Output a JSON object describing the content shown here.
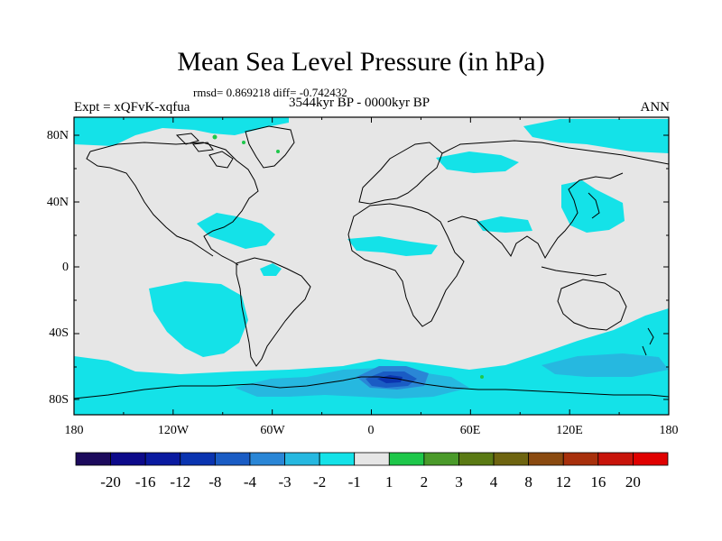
{
  "header": {
    "title": "Mean Sea Level Pressure (in hPa)",
    "stats": "rmsd= 0.869218 diff= -0.742432",
    "experiment": "Expt = xQFvK-xqfua",
    "period": "3544kyr BP - 0000kyr BP",
    "season": "ANN"
  },
  "axes": {
    "lat_labels": [
      "80N",
      "40N",
      "0",
      "40S",
      "80S"
    ],
    "lon_labels": [
      "180",
      "120W",
      "60W",
      "0",
      "60E",
      "120E",
      "180"
    ]
  },
  "colorbar": {
    "labels": [
      "-20",
      "-16",
      "-12",
      "-8",
      "-4",
      "-3",
      "-2",
      "-1",
      "1",
      "2",
      "3",
      "4",
      "8",
      "12",
      "16",
      "20"
    ],
    "colors": [
      "#1c0a5c",
      "#0d0a8a",
      "#0a1aa0",
      "#0a34b0",
      "#1a5cc4",
      "#2a86d6",
      "#26b8e0",
      "#14e2e8",
      "#e6e6e6",
      "#1ec74a",
      "#4a9a2a",
      "#5a7a14",
      "#6e6410",
      "#8a4a10",
      "#a8300c",
      "#c8140a",
      "#e00000"
    ]
  },
  "map_colors": {
    "background": "#e6e6e6",
    "cyan": "#14e2e8",
    "sky": "#26b8e0",
    "mid_blue": "#2a86d6",
    "blue": "#1a5cc4",
    "dark_blue": "#0a34b0",
    "green": "#1ec74a",
    "coast": "#000000"
  }
}
